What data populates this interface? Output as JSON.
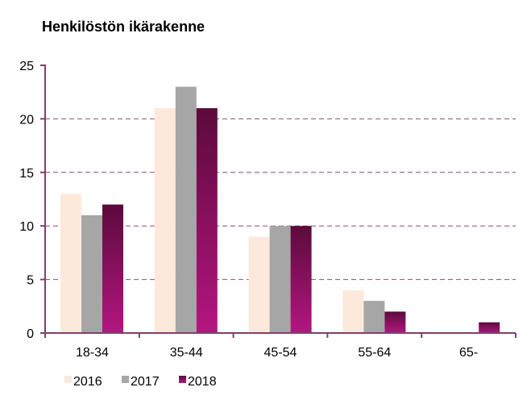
{
  "chart_data": {
    "type": "bar",
    "title": "Henkilöstön ikärakenne",
    "categories": [
      "18-34",
      "35-44",
      "45-54",
      "55-64",
      "65-"
    ],
    "series": [
      {
        "name": "2016",
        "values": [
          13,
          21,
          9,
          4,
          0
        ]
      },
      {
        "name": "2017",
        "values": [
          11,
          23,
          10,
          3,
          0
        ]
      },
      {
        "name": "2018",
        "values": [
          12,
          21,
          10,
          2,
          1
        ]
      }
    ],
    "ylim": [
      0,
      25
    ],
    "yticks": [
      "0",
      "5",
      "10",
      "15",
      "20",
      "25"
    ],
    "grid": "dashed horizontal",
    "legend_position": "bottom",
    "colors": {
      "series_2016": "#fde9dc",
      "series_2017": "#a6a6a6",
      "series_2018_top": "#5c0a3c",
      "series_2018_bottom": "#b31680",
      "axis": "#7f3f6e",
      "grid": "#8c4a7c"
    }
  }
}
